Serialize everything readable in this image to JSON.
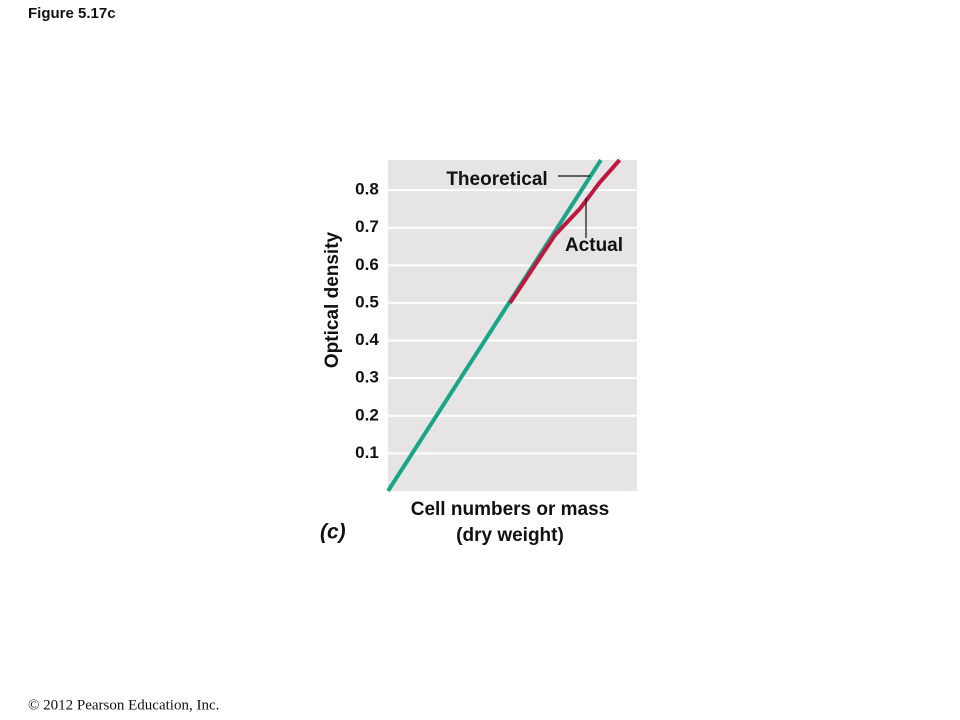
{
  "chart_data": {
    "type": "line",
    "figure_label": "Figure 5.17c",
    "panel_label": "(c)",
    "copyright": "© 2012 Pearson Education, Inc.",
    "ylabel": "Optical density",
    "xlabel": [
      "Cell numbers or mass",
      "(dry weight)"
    ],
    "xlim": [
      0,
      1
    ],
    "ylim": [
      0,
      0.88
    ],
    "yticks": [
      0.1,
      0.2,
      0.3,
      0.4,
      0.5,
      0.6,
      0.7,
      0.8
    ],
    "grid": true,
    "series": [
      {
        "name": "Theoretical",
        "color": "#1aa58a",
        "x": [
          0,
          0.855
        ],
        "values": [
          0,
          0.88
        ]
      },
      {
        "name": "Actual",
        "color": "#c0173f",
        "x": [
          0.49,
          0.58,
          0.67,
          0.77,
          0.85,
          0.93
        ],
        "values": [
          0.5,
          0.59,
          0.68,
          0.75,
          0.82,
          0.88
        ]
      }
    ]
  }
}
